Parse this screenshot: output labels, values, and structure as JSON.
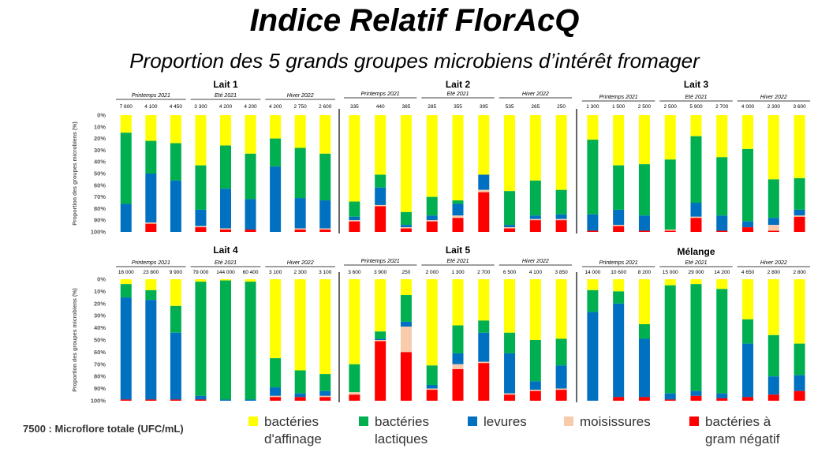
{
  "title": "Indice Relatif FlorAcQ",
  "subtitle": "Proportion des 5 grands groupes microbiens d’intérêt fromager",
  "footnote": "7500 : Microflore totale (UFC/mL)",
  "legend": [
    {
      "name": "bactéries\nd'affinage",
      "color": "#FFFF00"
    },
    {
      "name": "bactéries\nlactiques",
      "color": "#00B050"
    },
    {
      "name": "levures",
      "color": "#0070C0"
    },
    {
      "name": "moisissures",
      "color": "#F8CBAD"
    },
    {
      "name": "bactéries à\ngram négatif",
      "color": "#FF0000"
    }
  ],
  "chart_data": [
    {
      "type": "bar",
      "stacked": true,
      "title": "Lait 1",
      "ylabel": "Proportion des groupes microbiens (%)",
      "yticks": [
        "0%",
        "10%",
        "20%",
        "30%",
        "40%",
        "50%",
        "60%",
        "70%",
        "80%",
        "90%",
        "100%"
      ],
      "ylim": [
        0,
        100
      ],
      "seasons": [
        "Printemps 2021",
        "Eté 2021",
        "Hiver 2022"
      ],
      "categories": [
        "7 600",
        "4 100",
        "4 450",
        "3 300",
        "4 200",
        "4 200",
        "4 200",
        "2 750",
        "2 600"
      ],
      "series": [
        {
          "name": "bactéries d'affinage",
          "values": [
            15,
            22,
            24,
            43,
            26,
            33,
            20,
            28,
            33
          ]
        },
        {
          "name": "bactéries lactiques",
          "values": [
            61,
            28,
            32,
            38,
            37,
            39,
            24,
            43,
            40
          ]
        },
        {
          "name": "levures",
          "values": [
            24,
            42,
            44,
            14,
            34,
            26,
            56,
            26,
            24
          ]
        },
        {
          "name": "moisissures",
          "values": [
            0,
            1,
            0,
            1,
            1,
            0,
            0,
            1,
            1
          ]
        },
        {
          "name": "bactéries à gram négatif",
          "values": [
            0,
            7,
            0,
            4,
            2,
            2,
            0,
            2,
            2
          ]
        }
      ]
    },
    {
      "type": "bar",
      "stacked": true,
      "title": "Lait 2",
      "ylim": [
        0,
        100
      ],
      "seasons": [
        "Printemps 2021",
        "Eté 2021",
        "Hiver 2022"
      ],
      "categories": [
        "335",
        "440",
        "385",
        "285",
        "355",
        "395",
        "535",
        "265",
        "250"
      ],
      "series": [
        {
          "name": "bactéries d'affinage",
          "values": [
            74,
            51,
            83,
            70,
            73,
            51,
            65,
            56,
            64
          ]
        },
        {
          "name": "bactéries lactiques",
          "values": [
            13,
            11,
            11,
            16,
            3,
            0,
            29,
            30,
            21
          ]
        },
        {
          "name": "levures",
          "values": [
            3,
            15,
            2,
            4,
            10,
            13,
            2,
            3,
            4
          ]
        },
        {
          "name": "moisissures",
          "values": [
            1,
            1,
            1,
            1,
            2,
            2,
            1,
            1,
            1
          ]
        },
        {
          "name": "bactéries à gram négatif",
          "values": [
            9,
            22,
            3,
            9,
            12,
            34,
            3,
            10,
            10
          ]
        }
      ]
    },
    {
      "type": "bar",
      "stacked": true,
      "title": "Lait 3",
      "ylim": [
        0,
        100
      ],
      "seasons": [
        "Printemps 2021",
        "Eté 2021",
        "Hiver 2022"
      ],
      "categories": [
        "1 300",
        "1 500",
        "2 500",
        "2 500",
        "5 900",
        "2 700",
        "4 000",
        "2 300",
        "3 600"
      ],
      "series": [
        {
          "name": "bactéries d'affinage",
          "values": [
            21,
            43,
            42,
            38,
            18,
            36,
            29,
            55,
            54
          ]
        },
        {
          "name": "bactéries lactiques",
          "values": [
            64,
            38,
            44,
            60,
            57,
            50,
            62,
            33,
            27
          ]
        },
        {
          "name": "levures",
          "values": [
            14,
            13,
            13,
            0,
            12,
            13,
            5,
            6,
            5
          ]
        },
        {
          "name": "moisissures",
          "values": [
            0,
            1,
            0,
            1,
            1,
            0,
            0,
            5,
            1
          ]
        },
        {
          "name": "bactéries à gram négatif",
          "values": [
            1,
            5,
            1,
            1,
            12,
            1,
            4,
            1,
            13
          ]
        }
      ]
    },
    {
      "type": "bar",
      "stacked": true,
      "title": "Lait 4",
      "ylim": [
        0,
        100
      ],
      "seasons": [
        "Printemps 2021",
        "Eté 2021",
        "Hiver 2022"
      ],
      "categories": [
        "16 000",
        "23 800",
        "9 900",
        "79 000",
        "144 000",
        "60 400",
        "3 100",
        "2 300",
        "3 100"
      ],
      "series": [
        {
          "name": "bactéries d'affinage",
          "values": [
            4,
            9,
            22,
            2,
            1,
            2,
            65,
            75,
            78
          ]
        },
        {
          "name": "bactéries lactiques",
          "values": [
            11,
            8,
            22,
            94,
            98,
            97,
            24,
            19,
            14
          ]
        },
        {
          "name": "levures",
          "values": [
            84,
            82,
            55,
            3,
            1,
            1,
            7,
            3,
            4
          ]
        },
        {
          "name": "moisissures",
          "values": [
            0,
            0,
            0,
            0,
            0,
            0,
            1,
            0,
            1
          ]
        },
        {
          "name": "bactéries à gram négatif",
          "values": [
            1,
            1,
            1,
            1,
            0,
            0,
            3,
            3,
            3
          ]
        }
      ]
    },
    {
      "type": "bar",
      "stacked": true,
      "title": "Lait 5",
      "ylim": [
        0,
        100
      ],
      "seasons": [
        "Printemps 2021",
        "Eté 2021",
        "Hiver 2022"
      ],
      "categories": [
        "3 600",
        "3 900",
        "250",
        "2 000",
        "1 300",
        "2 700",
        "6 500",
        "4 100",
        "3 850"
      ],
      "series": [
        {
          "name": "bactéries d'affinage",
          "values": [
            70,
            43,
            13,
            71,
            38,
            34,
            44,
            50,
            49
          ]
        },
        {
          "name": "bactéries lactiques",
          "values": [
            23,
            6,
            22,
            16,
            23,
            10,
            17,
            34,
            22
          ]
        },
        {
          "name": "levures",
          "values": [
            0,
            1,
            4,
            3,
            9,
            24,
            33,
            7,
            19
          ]
        },
        {
          "name": "moisissures",
          "values": [
            2,
            1,
            21,
            1,
            4,
            1,
            1,
            1,
            1
          ]
        },
        {
          "name": "bactéries à gram négatif",
          "values": [
            5,
            49,
            40,
            9,
            26,
            31,
            5,
            8,
            9
          ]
        }
      ]
    },
    {
      "type": "bar",
      "stacked": true,
      "title": "Mélange",
      "ylim": [
        0,
        100
      ],
      "seasons": [
        "Printemps 2021",
        "Eté 2021",
        "Hiver 2022"
      ],
      "categories": [
        "14 000",
        "10 600",
        "8 200",
        "15 000",
        "29 000",
        "14 200",
        "4 650",
        "2 800",
        "2 800"
      ],
      "series": [
        {
          "name": "bactéries d'affinage",
          "values": [
            9,
            10,
            37,
            5,
            4,
            8,
            33,
            46,
            53
          ]
        },
        {
          "name": "bactéries lactiques",
          "values": [
            18,
            10,
            12,
            89,
            88,
            86,
            20,
            34,
            26
          ]
        },
        {
          "name": "levures",
          "values": [
            73,
            77,
            48,
            5,
            4,
            4,
            44,
            15,
            13
          ]
        },
        {
          "name": "moisissures",
          "values": [
            0,
            0,
            0,
            0,
            0,
            0,
            0,
            0,
            0
          ]
        },
        {
          "name": "bactéries à gram négatif",
          "values": [
            0,
            3,
            3,
            1,
            4,
            2,
            3,
            5,
            8
          ]
        }
      ]
    }
  ]
}
